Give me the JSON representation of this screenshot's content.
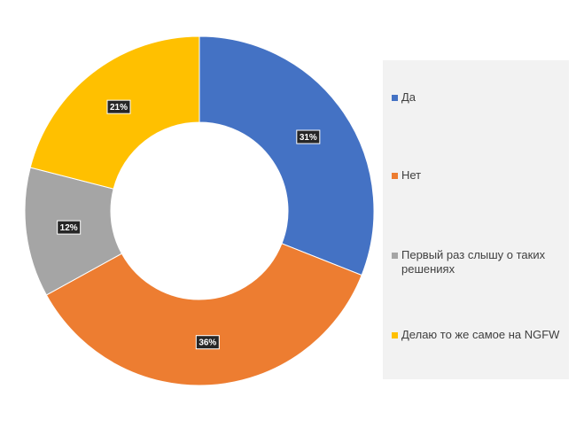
{
  "chart_data": {
    "type": "pie",
    "variant": "donut",
    "title": "",
    "start_angle_deg": 0,
    "direction": "clockwise",
    "legend_position": "right",
    "slices": [
      {
        "label": "Да",
        "value": 31,
        "value_label": "31%",
        "color": "#4472C4"
      },
      {
        "label": "Нет",
        "value": 36,
        "value_label": "36%",
        "color": "#ED7D31"
      },
      {
        "label": "Первый раз слышу о таких решениях",
        "value": 12,
        "value_label": "12%",
        "color": "#A5A5A5"
      },
      {
        "label": "Делаю то же самое на NGFW",
        "value": 21,
        "value_label": "21%",
        "color": "#FFC000"
      }
    ]
  }
}
